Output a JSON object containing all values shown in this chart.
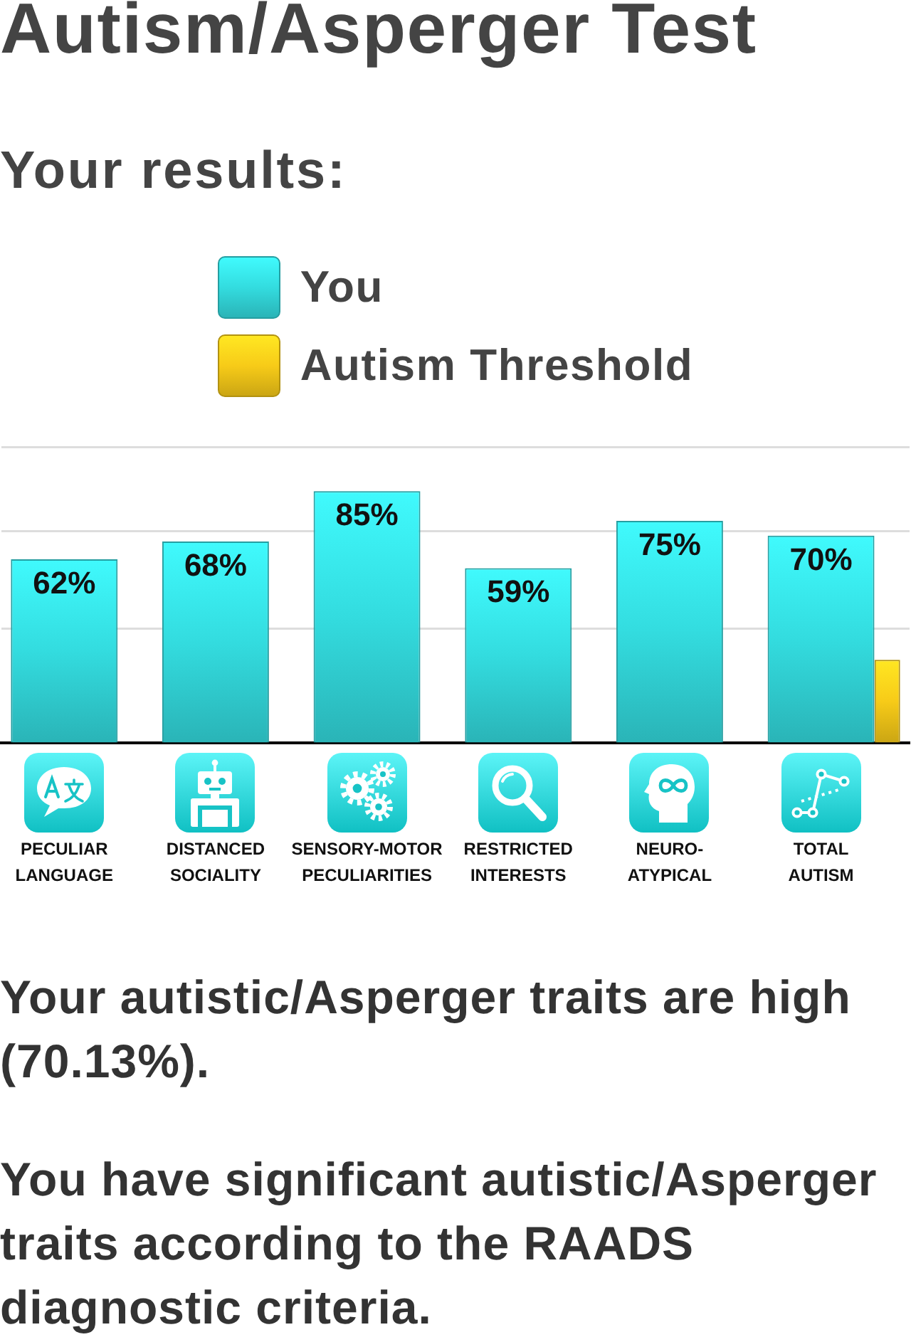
{
  "chart_data": {
    "type": "bar",
    "title": "Autism/Asperger Test",
    "subtitle": "Your results:",
    "categories": [
      "PECULIAR\nLANGUAGE",
      "DISTANCED\nSOCIALITY",
      "SENSORY-MOTOR\nPECULIARITIES",
      "RESTRICTED\nINTERESTS",
      "NEURO-\nATYPICAL",
      "TOTAL\nAUTISM"
    ],
    "series": [
      {
        "name": "You",
        "color": "#33dcdf",
        "values": [
          62,
          68,
          85,
          59,
          75,
          70
        ],
        "value_labels": [
          "62%",
          "68%",
          "85%",
          "59%",
          "75%",
          "70%"
        ]
      },
      {
        "name": "Autism Threshold",
        "color": "#f7cb18",
        "values": [
          null,
          null,
          null,
          null,
          null,
          28
        ]
      }
    ],
    "ylim": [
      0,
      100
    ],
    "yticks": [
      {
        "value": 38.5,
        "label": null
      },
      {
        "value": 71.5,
        "label": null
      },
      {
        "value": 100,
        "label": null
      }
    ],
    "grid": "y",
    "legend": "top",
    "tick_labels": "x",
    "annotations": [
      "Your autistic/Asperger traits are high (70.13%).",
      "You have significant autistic/Asperger traits according to the RAADS diagnostic criteria."
    ]
  }
}
